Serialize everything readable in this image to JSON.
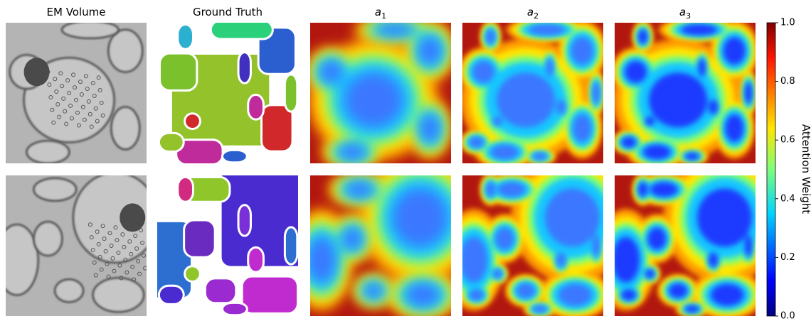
{
  "columns": [
    {
      "title": "EM Volume"
    },
    {
      "title": "Ground Truth"
    },
    {
      "title": {
        "base": "a",
        "sub": "1"
      }
    },
    {
      "title": {
        "base": "a",
        "sub": "2"
      }
    },
    {
      "title": {
        "base": "a",
        "sub": "3"
      }
    }
  ],
  "colorbar": {
    "label": "Attention Weight",
    "lim": [
      0,
      1
    ],
    "ticks": [
      {
        "value": 0,
        "label": "0.0"
      },
      {
        "value": 0.2,
        "label": "0.2"
      },
      {
        "value": 0.4,
        "label": "0.4"
      },
      {
        "value": 0.6,
        "label": "0.6"
      },
      {
        "value": 0.8,
        "label": "0.8"
      },
      {
        "value": 1,
        "label": "1.0"
      }
    ]
  }
}
